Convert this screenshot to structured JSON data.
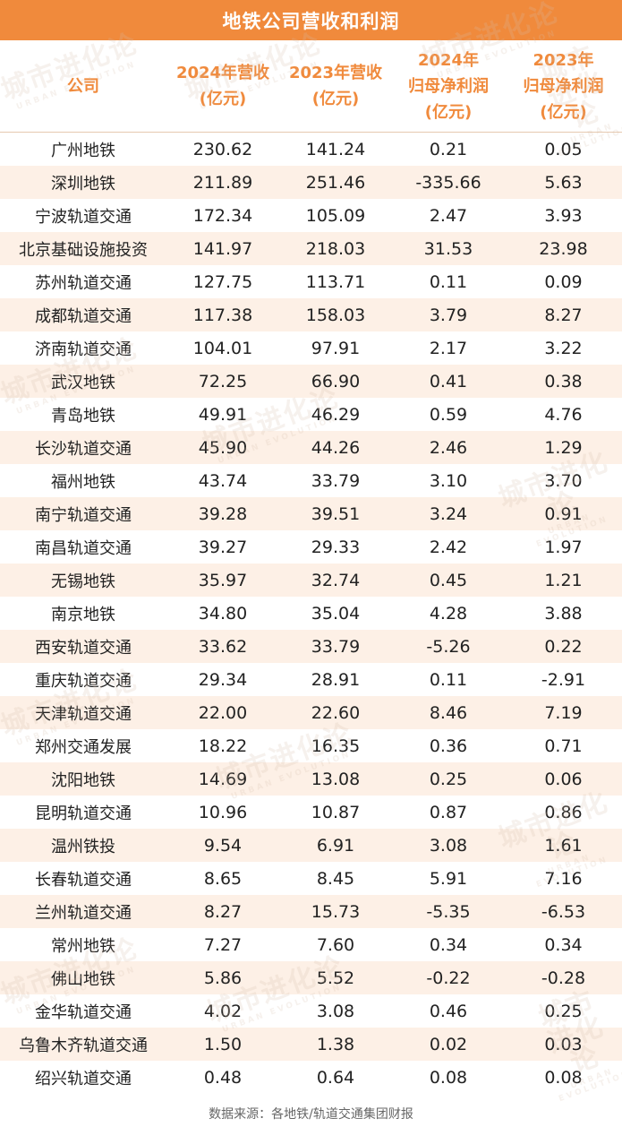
{
  "title": "地铁公司营收和利润",
  "columns": [
    {
      "lines": [
        "公司"
      ]
    },
    {
      "lines": [
        "2024年营收",
        "(亿元)"
      ]
    },
    {
      "lines": [
        "2023年营收",
        "(亿元)"
      ]
    },
    {
      "lines": [
        "2024年",
        "归母净利润",
        "(亿元)"
      ]
    },
    {
      "lines": [
        "2023年",
        "归母净利润",
        "(亿元)"
      ]
    }
  ],
  "rows": [
    [
      "广州地铁",
      "230.62",
      "141.24",
      "0.21",
      "0.05"
    ],
    [
      "深圳地铁",
      "211.89",
      "251.46",
      "-335.66",
      "5.63"
    ],
    [
      "宁波轨道交通",
      "172.34",
      "105.09",
      "2.47",
      "3.93"
    ],
    [
      "北京基础设施投资",
      "141.97",
      "218.03",
      "31.53",
      "23.98"
    ],
    [
      "苏州轨道交通",
      "127.75",
      "113.71",
      "0.11",
      "0.09"
    ],
    [
      "成都轨道交通",
      "117.38",
      "158.03",
      "3.79",
      "8.27"
    ],
    [
      "济南轨道交通",
      "104.01",
      "97.91",
      "2.17",
      "3.22"
    ],
    [
      "武汉地铁",
      "72.25",
      "66.90",
      "0.41",
      "0.38"
    ],
    [
      "青岛地铁",
      "49.91",
      "46.29",
      "0.59",
      "4.76"
    ],
    [
      "长沙轨道交通",
      "45.90",
      "44.26",
      "2.46",
      "1.29"
    ],
    [
      "福州地铁",
      "43.74",
      "33.79",
      "3.10",
      "3.70"
    ],
    [
      "南宁轨道交通",
      "39.28",
      "39.51",
      "3.24",
      "0.91"
    ],
    [
      "南昌轨道交通",
      "39.27",
      "29.33",
      "2.42",
      "1.97"
    ],
    [
      "无锡地铁",
      "35.97",
      "32.74",
      "0.45",
      "1.21"
    ],
    [
      "南京地铁",
      "34.80",
      "35.04",
      "4.28",
      "3.88"
    ],
    [
      "西安轨道交通",
      "33.62",
      "33.79",
      "-5.26",
      "0.22"
    ],
    [
      "重庆轨道交通",
      "29.34",
      "28.91",
      "0.11",
      "-2.91"
    ],
    [
      "天津轨道交通",
      "22.00",
      "22.60",
      "8.46",
      "7.19"
    ],
    [
      "郑州交通发展",
      "18.22",
      "16.35",
      "0.36",
      "0.71"
    ],
    [
      "沈阳地铁",
      "14.69",
      "13.08",
      "0.25",
      "0.06"
    ],
    [
      "昆明轨道交通",
      "10.96",
      "10.87",
      "0.87",
      "0.86"
    ],
    [
      "温州铁投",
      "9.54",
      "6.91",
      "3.08",
      "1.61"
    ],
    [
      "长春轨道交通",
      "8.65",
      "8.45",
      "5.91",
      "7.16"
    ],
    [
      "兰州轨道交通",
      "8.27",
      "15.73",
      "-5.35",
      "-6.53"
    ],
    [
      "常州地铁",
      "7.27",
      "7.60",
      "0.34",
      "0.34"
    ],
    [
      "佛山地铁",
      "5.86",
      "5.52",
      "-0.22",
      "-0.28"
    ],
    [
      "金华轨道交通",
      "4.02",
      "3.08",
      "0.46",
      "0.25"
    ],
    [
      "乌鲁木齐轨道交通",
      "1.50",
      "1.38",
      "0.02",
      "0.03"
    ],
    [
      "绍兴轨道交通",
      "0.48",
      "0.64",
      "0.08",
      "0.08"
    ]
  ],
  "source": "数据来源：各地铁/轨道交通集团财报",
  "watermark": {
    "main": "城市进化论",
    "sub": "URBAN EVOLUTION"
  },
  "colors": {
    "accent": "#f08a3c",
    "stripe": "#fdf0e6"
  }
}
